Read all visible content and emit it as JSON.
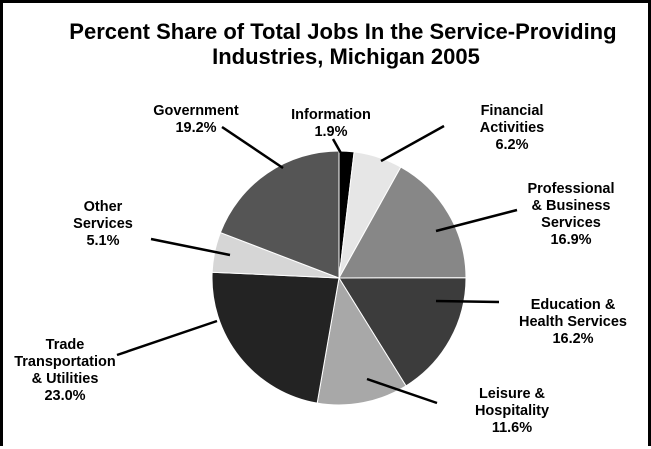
{
  "chart_data": {
    "type": "pie",
    "title": "Percent Share of Total Jobs In the Service-Providing Industries, Michigan 2005",
    "title_lines": [
      "Percent Share of Total Jobs In the Service-Providing",
      "Industries, Michigan 2005"
    ],
    "unit": "%",
    "start": "12 o'clock, clockwise",
    "slices": [
      {
        "name": "Information",
        "value": 1.9,
        "label_lines": [
          "Information",
          "1.9%"
        ],
        "color": "#000000"
      },
      {
        "name": "Financial Activities",
        "value": 6.2,
        "label_lines": [
          "Financial",
          "Activities",
          "6.2%"
        ],
        "color": "#e6e6e6"
      },
      {
        "name": "Professional & Business Services",
        "value": 16.9,
        "label_lines": [
          "Professional",
          "& Business",
          "Services",
          "16.9%"
        ],
        "color": "#878787"
      },
      {
        "name": "Education & Health Services",
        "value": 16.2,
        "label_lines": [
          "Education &",
          "Health Services",
          "16.2%"
        ],
        "color": "#3c3c3c"
      },
      {
        "name": "Leisure & Hospitality",
        "value": 11.6,
        "label_lines": [
          "Leisure &",
          "Hospitality",
          "11.6%"
        ],
        "color": "#a8a8a8"
      },
      {
        "name": "Trade Transportation & Utilities",
        "value": 23.0,
        "label_lines": [
          "Trade",
          "Transportation",
          "& Utilities",
          "23.0%"
        ],
        "color": "#232323"
      },
      {
        "name": "Other Services",
        "value": 5.1,
        "label_lines": [
          "Other",
          "Services",
          "5.1%"
        ],
        "color": "#d6d6d6"
      },
      {
        "name": "Government",
        "value": 19.2,
        "label_lines": [
          "Government",
          "19.2%"
        ],
        "color": "#555555"
      }
    ]
  }
}
